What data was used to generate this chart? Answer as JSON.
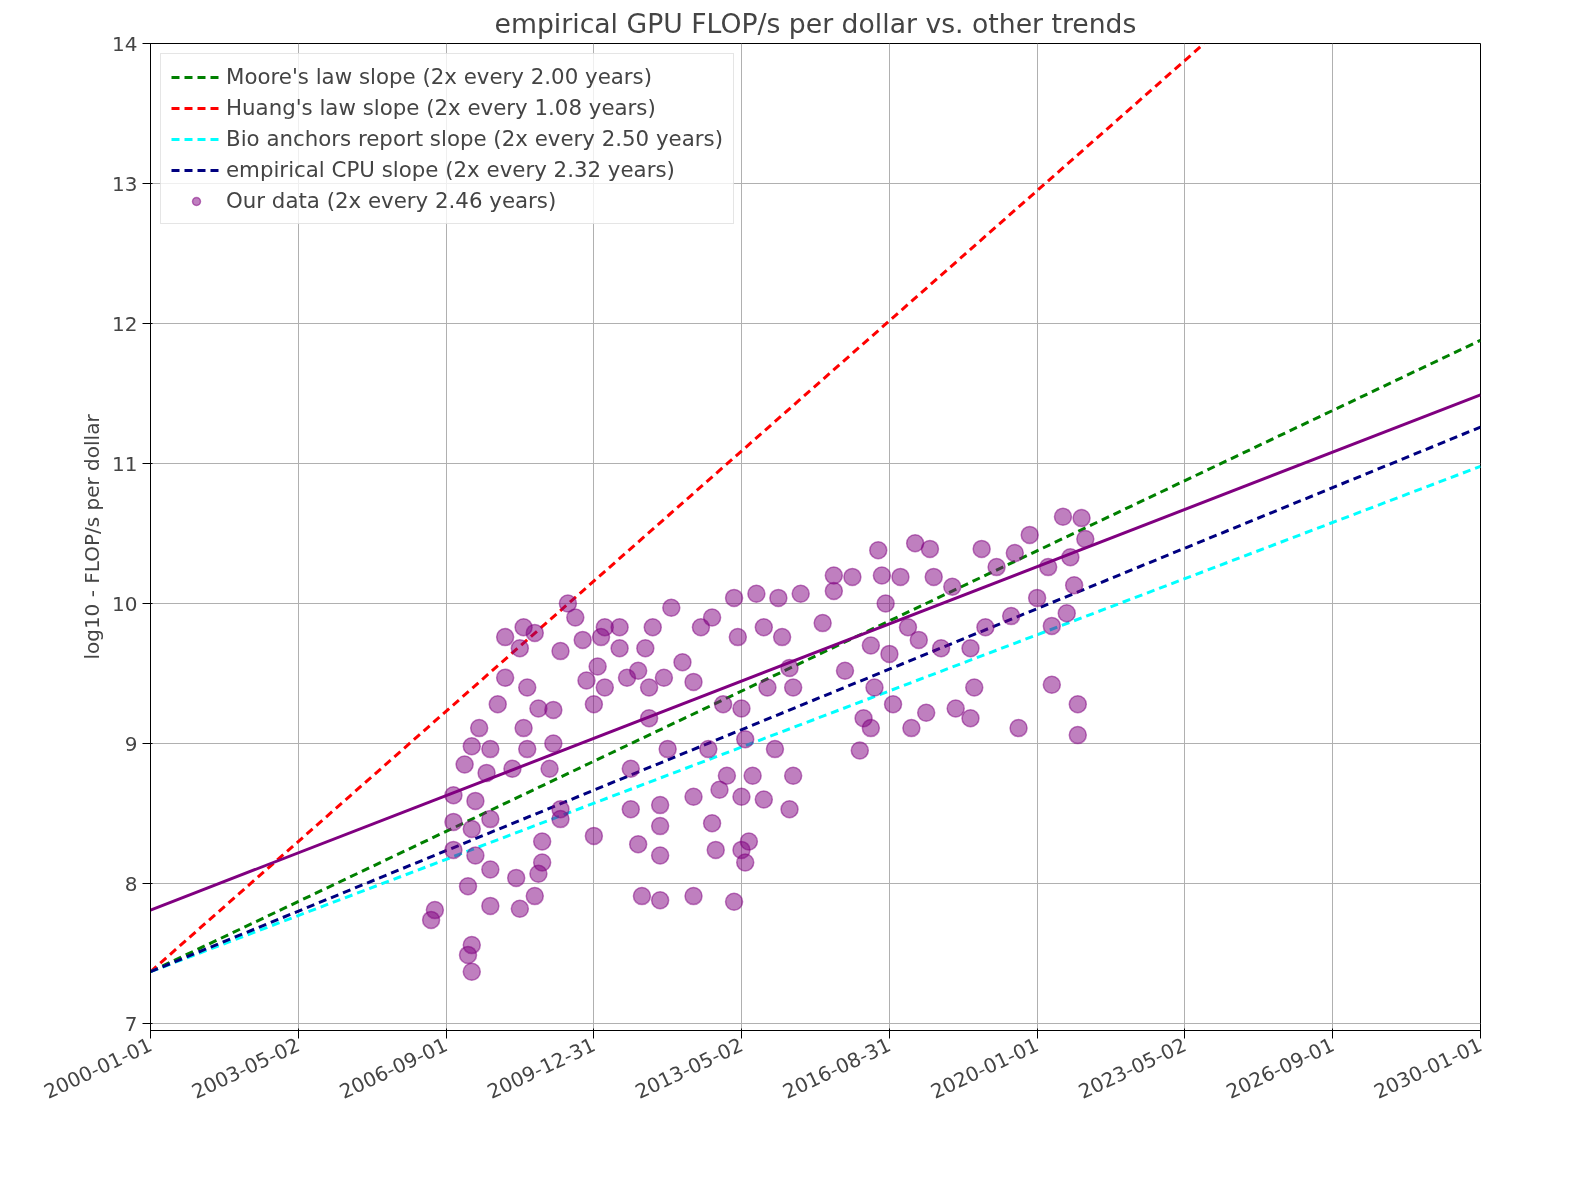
{
  "chart_data": {
    "type": "scatter",
    "title": "empirical GPU FLOP/s per dollar vs. other trends",
    "ylabel": "log10 - FLOP/s per dollar",
    "xlim": [
      "2000-01-01",
      "2030-01-01"
    ],
    "xticks": [
      "2000-01-01",
      "2003-05-02",
      "2006-09-01",
      "2009-12-31",
      "2013-05-02",
      "2016-08-31",
      "2020-01-01",
      "2023-05-02",
      "2026-09-01",
      "2030-01-01"
    ],
    "ylim": [
      6.95,
      14
    ],
    "yticks": [
      7,
      8,
      9,
      10,
      11,
      12,
      13,
      14
    ],
    "grid": true,
    "legend": "top left",
    "marker": "circle",
    "series": [
      {
        "name": "Moore's law slope (2x every 2.00 years)",
        "type": "line",
        "marker": "none",
        "line_style": "dashed",
        "color": "#008000",
        "x": [
          "2000-01-01",
          "2030-01-01"
        ],
        "values": [
          7.37,
          11.88
        ]
      },
      {
        "name": "Huang's law slope (2x every 1.08 years)",
        "type": "line",
        "marker": "none",
        "line_style": "dashed",
        "color": "#ff0000",
        "x": [
          "2000-01-01",
          "2023-10-08"
        ],
        "values": [
          7.37,
          14
        ]
      },
      {
        "name": "Bio anchors report slope (2x every 2.50 years)",
        "type": "line",
        "marker": "none",
        "line_style": "dashed",
        "color": "#00ffff",
        "x": [
          "2000-01-01",
          "2030-01-01"
        ],
        "values": [
          7.37,
          10.98
        ]
      },
      {
        "name": "empirical CPU slope (2x every 2.32 years)",
        "type": "line",
        "marker": "none",
        "line_style": "dashed",
        "color": "#000080",
        "x": [
          "2000-01-01",
          "2030-01-01"
        ],
        "values": [
          7.37,
          11.26
        ]
      },
      {
        "type": "line",
        "marker": "none",
        "line_style": "solid",
        "color": "#800080",
        "x": [
          "2000-01-01",
          "2030-01-01"
        ],
        "values": [
          7.81,
          11.49
        ]
      },
      {
        "name": "Our data (2x every 2.46 years)",
        "color": "#800080",
        "x": [
          "2006-05",
          "2006-06",
          "2007-04",
          "2007-04",
          "2007-03",
          "2007-03",
          "2006-11",
          "2006-11",
          "2006-11",
          "2007-02",
          "2007-04",
          "2007-06",
          "2007-05",
          "2007-04",
          "2007-05",
          "2007-09",
          "2007-09",
          "2007-08",
          "2007-09",
          "2007-11",
          "2008-01",
          "2008-01",
          "2007-09",
          "2008-04",
          "2008-05",
          "2008-09",
          "2008-05",
          "2008-06",
          "2008-09",
          "2008-03",
          "2008-07",
          "2008-06",
          "2008-07",
          "2008-10",
          "2008-11",
          "2008-11",
          "2008-10",
          "2009-01",
          "2009-02",
          "2009-02",
          "2009-04",
          "2009-04",
          "2009-04",
          "2009-06",
          "2009-08",
          "2009-10",
          "2009-11",
          "2010-01",
          "2010-01",
          "2010-02",
          "2010-03",
          "2010-04",
          "2010-04",
          "2010-08",
          "2010-08",
          "2010-10",
          "2010-11",
          "2010-11",
          "2011-01",
          "2011-02",
          "2011-01",
          "2011-03",
          "2011-04",
          "2011-04",
          "2011-05",
          "2011-07",
          "2011-07",
          "2011-07",
          "2011-07",
          "2011-08",
          "2011-09",
          "2011-10",
          "2012-01",
          "2012-04",
          "2012-04",
          "2012-04",
          "2012-06",
          "2012-08",
          "2012-09",
          "2012-10",
          "2012-11",
          "2012-09",
          "2012-12",
          "2013-01",
          "2013-03",
          "2013-03",
          "2013-04",
          "2013-05",
          "2013-05",
          "2013-05",
          "2013-06",
          "2013-07",
          "2013-06",
          "2013-08",
          "2013-09",
          "2013-11",
          "2013-11",
          "2013-12",
          "2014-02",
          "2014-03",
          "2014-04",
          "2014-06",
          "2014-06",
          "2014-07",
          "2014-07",
          "2014-09",
          "2015-03",
          "2015-06",
          "2015-06",
          "2015-09",
          "2015-11",
          "2016-01",
          "2016-02",
          "2016-04",
          "2016-04",
          "2016-05",
          "2016-06",
          "2016-07",
          "2016-08",
          "2016-09",
          "2016-10",
          "2016-12",
          "2017-02",
          "2017-03",
          "2017-04",
          "2017-05",
          "2017-07",
          "2017-08",
          "2017-09",
          "2017-11",
          "2018-02",
          "2018-03",
          "2018-07",
          "2018-07",
          "2018-08",
          "2018-10",
          "2018-11",
          "2019-02",
          "2019-06",
          "2019-08",
          "2019-07",
          "2019-11",
          "2020-01",
          "2020-04",
          "2020-05",
          "2020-05",
          "2020-08",
          "2020-09",
          "2020-10",
          "2020-12",
          "2020-12",
          "2021-01",
          "2021-02",
          "2020-11"
        ],
        "values": [
          7.74,
          7.81,
          7.37,
          7.56,
          7.49,
          7.98,
          8.63,
          8.44,
          8.24,
          8.85,
          8.98,
          9.11,
          8.59,
          8.39,
          8.2,
          8.1,
          8.46,
          8.79,
          8.96,
          9.28,
          9.47,
          9.76,
          7.84,
          8.04,
          7.82,
          7.91,
          9.68,
          9.83,
          9.79,
          8.82,
          8.96,
          9.11,
          9.4,
          9.25,
          8.3,
          8.15,
          8.07,
          8.82,
          9.0,
          9.24,
          8.53,
          8.46,
          9.66,
          10.0,
          9.9,
          9.74,
          9.45,
          8.34,
          9.28,
          9.55,
          9.76,
          9.83,
          9.4,
          9.68,
          9.83,
          9.47,
          8.82,
          8.53,
          8.28,
          7.91,
          9.52,
          9.68,
          9.4,
          9.18,
          9.83,
          8.56,
          7.88,
          8.41,
          8.2,
          9.47,
          8.96,
          9.97,
          9.58,
          7.91,
          8.62,
          9.44,
          9.83,
          8.96,
          8.43,
          8.24,
          8.67,
          9.9,
          9.28,
          8.77,
          7.87,
          10.04,
          9.76,
          9.25,
          8.62,
          8.24,
          8.15,
          8.3,
          9.03,
          8.77,
          10.07,
          9.83,
          8.6,
          9.4,
          8.96,
          10.04,
          9.76,
          9.54,
          8.53,
          8.77,
          9.4,
          10.07,
          9.86,
          10.09,
          10.2,
          9.52,
          10.19,
          8.95,
          9.18,
          9.11,
          9.7,
          9.4,
          10.38,
          10.2,
          10.0,
          9.64,
          9.28,
          10.19,
          9.83,
          9.11,
          10.43,
          9.74,
          9.22,
          10.39,
          10.19,
          9.68,
          10.12,
          9.25,
          9.18,
          9.68,
          9.4,
          10.39,
          9.83,
          10.26,
          9.91,
          9.11,
          10.36,
          10.49,
          10.04,
          10.26,
          9.84,
          9.42,
          10.62,
          9.93,
          10.33,
          9.28,
          9.06,
          10.61,
          10.46,
          10.13
        ]
      }
    ]
  }
}
